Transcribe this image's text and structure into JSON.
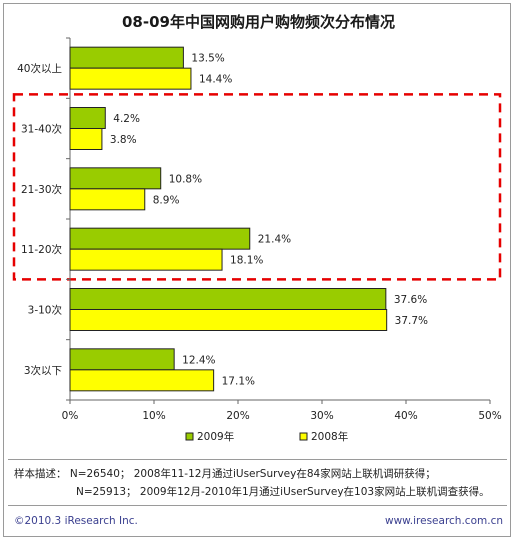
{
  "chart_data": {
    "type": "bar",
    "orientation": "horizontal",
    "title": "08-09年中国网购用户购物频次分布情况",
    "categories": [
      "40次以上",
      "31-40次",
      "21-30次",
      "11-20次",
      "3-10次",
      "3次以下"
    ],
    "series": [
      {
        "name": "2009年",
        "color": "#99cc00",
        "values": [
          13.5,
          4.2,
          10.8,
          21.4,
          37.6,
          12.4
        ],
        "labels": [
          "13.5%",
          "4.2%",
          "10.8%",
          "21.4%",
          "37.6%",
          "12.4%"
        ]
      },
      {
        "name": "2008年",
        "color": "#ffff00",
        "values": [
          14.4,
          3.8,
          8.9,
          18.1,
          37.7,
          17.1
        ],
        "labels": [
          "14.4%",
          "3.8%",
          "8.9%",
          "18.1%",
          "37.7%",
          "17.1%"
        ]
      }
    ],
    "xlim": [
      0,
      50
    ],
    "xticks": [
      0,
      10,
      20,
      30,
      40,
      50
    ],
    "xtick_labels": [
      "0%",
      "10%",
      "20%",
      "30%",
      "40%",
      "50%"
    ],
    "grid": false,
    "legend_position": "bottom",
    "highlight": {
      "style": "red dashed box",
      "categories": [
        "31-40次",
        "21-30次",
        "11-20次"
      ]
    }
  },
  "footer": {
    "note_line1": "样本描述：  N=26540；  2008年11-12月通过iUserSurvey在84家网站上联机调研获得；",
    "note_line2": "N=25913；  2009年12月-2010年1月通过iUserSurvey在103家网站上联机调查获得。",
    "copyright": "©2010.3  iResearch Inc.",
    "website": "www.iresearch.com.cn"
  }
}
